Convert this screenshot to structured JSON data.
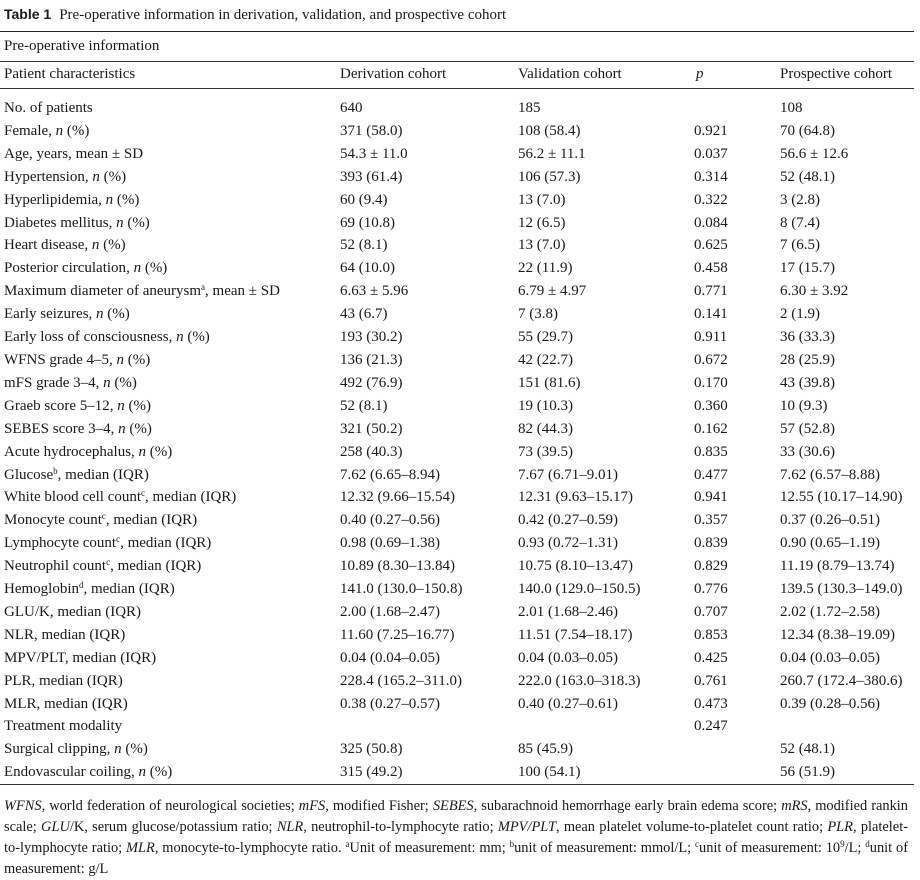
{
  "caption": {
    "label": "Table 1",
    "text": "Pre-operative information in derivation, validation, and prospective cohort"
  },
  "section_title": "Pre-operative information",
  "columns": [
    "Patient characteristics",
    "Derivation cohort",
    "Validation cohort",
    "p",
    "Prospective cohort"
  ],
  "rows": [
    {
      "label": "No. of patients",
      "derivation": "640",
      "validation": "185",
      "p": "",
      "prospective": "108"
    },
    {
      "label": "Female, n (%)",
      "derivation": "371 (58.0)",
      "validation": "108 (58.4)",
      "p": "0.921",
      "prospective": "70 (64.8)"
    },
    {
      "label": "Age, years, mean ± SD",
      "derivation": "54.3 ± 11.0",
      "validation": "56.2 ± 11.1",
      "p": "0.037",
      "prospective": "56.6 ± 12.6"
    },
    {
      "label": "Hypertension, n (%)",
      "derivation": "393 (61.4)",
      "validation": "106 (57.3)",
      "p": "0.314",
      "prospective": "52 (48.1)"
    },
    {
      "label": "Hyperlipidemia, n (%)",
      "derivation": "60 (9.4)",
      "validation": "13 (7.0)",
      "p": "0.322",
      "prospective": "3 (2.8)"
    },
    {
      "label": "Diabetes mellitus, n (%)",
      "derivation": "69 (10.8)",
      "validation": "12 (6.5)",
      "p": "0.084",
      "prospective": "8 (7.4)"
    },
    {
      "label": "Heart disease, n (%)",
      "derivation": "52 (8.1)",
      "validation": "13 (7.0)",
      "p": "0.625",
      "prospective": "7 (6.5)"
    },
    {
      "label": "Posterior circulation, n (%)",
      "derivation": "64 (10.0)",
      "validation": "22 (11.9)",
      "p": "0.458",
      "prospective": "17 (15.7)"
    },
    {
      "label": "Maximum diameter of aneurysm, mean ± SD",
      "sup": "a",
      "derivation": "6.63 ± 5.96",
      "validation": "6.79 ± 4.97",
      "p": "0.771",
      "prospective": "6.30 ± 3.92"
    },
    {
      "label": "Early seizures, n (%)",
      "derivation": "43 (6.7)",
      "validation": "7 (3.8)",
      "p": "0.141",
      "prospective": "2 (1.9)"
    },
    {
      "label": "Early loss of consciousness, n (%)",
      "derivation": "193 (30.2)",
      "validation": "55 (29.7)",
      "p": "0.911",
      "prospective": "36 (33.3)"
    },
    {
      "label": "WFNS grade 4–5, n (%)",
      "derivation": "136 (21.3)",
      "validation": "42 (22.7)",
      "p": "0.672",
      "prospective": "28 (25.9)"
    },
    {
      "label": "mFS grade 3–4, n (%)",
      "derivation": "492 (76.9)",
      "validation": "151 (81.6)",
      "p": "0.170",
      "prospective": "43 (39.8)"
    },
    {
      "label": "Graeb score 5–12, n (%)",
      "derivation": "52 (8.1)",
      "validation": "19 (10.3)",
      "p": "0.360",
      "prospective": "10 (9.3)"
    },
    {
      "label": "SEBES score 3–4, n (%)",
      "derivation": "321 (50.2)",
      "validation": "82 (44.3)",
      "p": "0.162",
      "prospective": "57 (52.8)"
    },
    {
      "label": "Acute hydrocephalus, n (%)",
      "derivation": "258 (40.3)",
      "validation": "73 (39.5)",
      "p": "0.835",
      "prospective": "33 (30.6)"
    },
    {
      "label": "Glucose, median (IQR)",
      "sup": "b",
      "derivation": "7.62 (6.65–8.94)",
      "validation": "7.67 (6.71–9.01)",
      "p": "0.477",
      "prospective": "7.62 (6.57–8.88)"
    },
    {
      "label": "White blood cell count, median (IQR)",
      "sup": "c",
      "derivation": "12.32 (9.66–15.54)",
      "validation": "12.31 (9.63–15.17)",
      "p": "0.941",
      "prospective": "12.55 (10.17–14.90)"
    },
    {
      "label": "Monocyte count, median (IQR)",
      "sup": "c",
      "derivation": "0.40 (0.27–0.56)",
      "validation": "0.42 (0.27–0.59)",
      "p": "0.357",
      "prospective": "0.37 (0.26–0.51)"
    },
    {
      "label": "Lymphocyte count, median (IQR)",
      "sup": "c",
      "derivation": "0.98 (0.69–1.38)",
      "validation": "0.93 (0.72–1.31)",
      "p": "0.839",
      "prospective": "0.90 (0.65–1.19)"
    },
    {
      "label": "Neutrophil count, median (IQR)",
      "sup": "c",
      "derivation": "10.89 (8.30–13.84)",
      "validation": "10.75 (8.10–13.47)",
      "p": "0.829",
      "prospective": "11.19 (8.79–13.74)"
    },
    {
      "label": "Hemoglobin, median (IQR)",
      "sup": "d",
      "derivation": "141.0 (130.0–150.8)",
      "validation": "140.0 (129.0–150.5)",
      "p": "0.776",
      "prospective": "139.5 (130.3–149.0)"
    },
    {
      "label": "GLU/K, median (IQR)",
      "derivation": "2.00 (1.68–2.47)",
      "validation": "2.01 (1.68–2.46)",
      "p": "0.707",
      "prospective": "2.02 (1.72–2.58)"
    },
    {
      "label": "NLR, median (IQR)",
      "derivation": "11.60 (7.25–16.77)",
      "validation": "11.51 (7.54–18.17)",
      "p": "0.853",
      "prospective": "12.34 (8.38–19.09)"
    },
    {
      "label": "MPV/PLT, median (IQR)",
      "derivation": "0.04 (0.04–0.05)",
      "validation": "0.04 (0.03–0.05)",
      "p": "0.425",
      "prospective": "0.04 (0.03–0.05)"
    },
    {
      "label": "PLR, median (IQR)",
      "derivation": "228.4 (165.2–311.0)",
      "validation": "222.0 (163.0–318.3)",
      "p": "0.761",
      "prospective": "260.7 (172.4–380.6)"
    },
    {
      "label": "MLR, median (IQR)",
      "derivation": "0.38 (0.27–0.57)",
      "validation": "0.40 (0.27–0.61)",
      "p": "0.473",
      "prospective": "0.39 (0.28–0.56)"
    },
    {
      "label": "Treatment modality",
      "derivation": "",
      "validation": "",
      "p": "0.247",
      "prospective": ""
    },
    {
      "label": "Surgical clipping, n (%)",
      "derivation": "325 (50.8)",
      "validation": "85 (45.9)",
      "p": "",
      "prospective": "52 (48.1)"
    },
    {
      "label": "Endovascular coiling, n (%)",
      "derivation": "315 (49.2)",
      "validation": "100 (54.1)",
      "p": "",
      "prospective": "56 (51.9)"
    }
  ],
  "footnotes": {
    "wfns_abbr": "WFNS",
    "wfns_def": ", world federation of neurological societies; ",
    "mfs_abbr": "mFS",
    "mfs_def": ", modified Fisher; ",
    "sebes_abbr": "SEBES",
    "sebes_def": ", subarachnoid hemorrhage early brain edema score; ",
    "mrs_abbr": "mRS",
    "mrs_def": ", modified rankin scale; ",
    "gluk_abbr": "GLU",
    "gluk_mid": "/K",
    "gluk_def": ", serum glucose/potassium ratio; ",
    "nlr_abbr": "NLR",
    "nlr_def": ", neutrophil-to-lymphocyte ratio; ",
    "mpv_abbr": "MPV/PLT",
    "mpv_def": ", mean platelet volume-to-platelet count ratio; ",
    "plr_abbr": "PLR",
    "plr_def": ", platelet-to-lymphocyte ratio; ",
    "mlr_abbr": "MLR",
    "mlr_def": ", monocyte-to-lymphocyte ratio. ",
    "unit_a_mark": "a",
    "unit_a": "Unit of measurement: mm; ",
    "unit_b_mark": "b",
    "unit_b": "unit of measurement: mmol/L; ",
    "unit_c_mark": "c",
    "unit_c_pre": "unit of measurement: 10",
    "unit_c_exp": "9",
    "unit_c_post": "/L; ",
    "unit_d_mark": "d",
    "unit_d": "unit of measurement: g/L"
  }
}
